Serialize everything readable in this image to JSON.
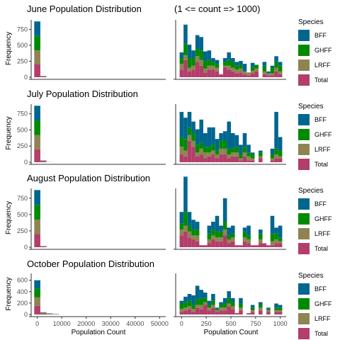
{
  "colors": {
    "BFF": "#00668F",
    "GHFF": "#008A00",
    "LRFF": "#8E8452",
    "Total": "#B33D6B",
    "axis": "#333333",
    "text": "#000000",
    "tick_text": "#4d4d4d"
  },
  "column_title_right": "(1 <= count => 1000)",
  "legend": {
    "title": "Species",
    "entries": [
      "BFF",
      "GHFF",
      "LRFF",
      "Total"
    ]
  },
  "y_axis_label": "Frequency",
  "x_axis_label": "Population Count",
  "panels": [
    {
      "title": "June Population Distribution",
      "left_x_ticks": [],
      "left_y_ticks": [
        0,
        250,
        500,
        750
      ],
      "left_ylim": [
        0,
        900
      ],
      "right_ylim": [
        0,
        60
      ]
    },
    {
      "title": "July Population Distribution",
      "left_x_ticks": [],
      "left_y_ticks": [
        0,
        250,
        500,
        750
      ],
      "left_ylim": [
        0,
        900
      ],
      "right_ylim": [
        0,
        60
      ]
    },
    {
      "title": "August Population Distribution",
      "left_x_ticks": [],
      "left_y_ticks": [
        0,
        250,
        500,
        750
      ],
      "left_ylim": [
        0,
        900
      ],
      "right_ylim": [
        0,
        60
      ]
    },
    {
      "title": "October Population Distribution",
      "left_x_ticks": [
        0,
        10000,
        20000,
        30000,
        40000,
        50000
      ],
      "left_y_ticks": [
        0,
        200,
        400,
        600
      ],
      "left_ylim": [
        0,
        720
      ],
      "right_ylim": [
        0,
        60
      ]
    }
  ],
  "chart_data": [
    {
      "type": "bar",
      "title": "June Population Distribution",
      "xlabel": "",
      "ylabel": "Frequency",
      "xlim": [
        -2500,
        52500
      ],
      "ylim": [
        0,
        900
      ],
      "bin_width": 2500,
      "bin_centers": [
        0,
        2500,
        5000
      ],
      "series": [
        {
          "name": "Total",
          "values": [
            200,
            12,
            0
          ]
        },
        {
          "name": "LRFF",
          "values": [
            222,
            3,
            0
          ]
        },
        {
          "name": "GHFF",
          "values": [
            225,
            2,
            0
          ]
        },
        {
          "name": "BFF",
          "values": [
            228,
            2,
            0
          ]
        }
      ]
    },
    {
      "type": "bar",
      "title": "(1 <= count => 1000)",
      "xlabel": "",
      "ylabel": "",
      "xlim": [
        -60,
        1060
      ],
      "ylim": [
        0,
        60
      ],
      "bin_width": 40,
      "bin_centers": [
        0,
        40,
        80,
        120,
        160,
        200,
        240,
        280,
        320,
        360,
        400,
        440,
        480,
        520,
        560,
        600,
        640,
        680,
        720,
        760,
        800,
        840,
        880,
        920,
        960,
        1000
      ],
      "series": [
        {
          "name": "Total",
          "values": [
            8,
            18,
            6,
            8,
            16,
            12,
            5,
            8,
            8,
            6,
            3,
            10,
            8,
            6,
            4,
            5,
            3,
            2,
            4,
            6,
            0,
            3,
            2,
            2,
            6,
            3
          ]
        },
        {
          "name": "LRFF",
          "values": [
            6,
            5,
            4,
            4,
            6,
            6,
            4,
            4,
            4,
            4,
            0,
            2,
            4,
            4,
            4,
            4,
            3,
            3,
            3,
            3,
            0,
            3,
            2,
            2,
            4,
            3
          ]
        },
        {
          "name": "GHFF",
          "values": [
            6,
            12,
            10,
            8,
            8,
            10,
            8,
            6,
            4,
            4,
            0,
            4,
            6,
            6,
            4,
            4,
            0,
            0,
            4,
            4,
            0,
            6,
            0,
            6,
            6,
            6
          ]
        },
        {
          "name": "BFF",
          "values": [
            6,
            20,
            14,
            8,
            14,
            14,
            10,
            10,
            4,
            4,
            0,
            4,
            8,
            4,
            4,
            4,
            8,
            0,
            4,
            0,
            0,
            4,
            2,
            2,
            6,
            4
          ]
        }
      ]
    },
    {
      "type": "bar",
      "title": "July Population Distribution",
      "xlabel": "",
      "ylabel": "Frequency",
      "xlim": [
        -2500,
        52500
      ],
      "ylim": [
        0,
        900
      ],
      "bin_width": 2500,
      "bin_centers": [
        0,
        2500,
        5000
      ],
      "series": [
        {
          "name": "Total",
          "values": [
            200,
            18,
            2
          ]
        },
        {
          "name": "LRFF",
          "values": [
            222,
            4,
            0
          ]
        },
        {
          "name": "GHFF",
          "values": [
            225,
            3,
            0
          ]
        },
        {
          "name": "BFF",
          "values": [
            228,
            3,
            0
          ]
        }
      ]
    },
    {
      "type": "bar",
      "title": "(1 <= count => 1000)",
      "xlabel": "",
      "ylabel": "",
      "xlim": [
        -60,
        1060
      ],
      "ylim": [
        0,
        60
      ],
      "bin_width": 40,
      "bin_centers": [
        0,
        40,
        80,
        120,
        160,
        200,
        240,
        280,
        320,
        360,
        400,
        440,
        480,
        520,
        560,
        600,
        640,
        680,
        720,
        760,
        800,
        840,
        880,
        920,
        960,
        1000
      ],
      "series": [
        {
          "name": "Total",
          "values": [
            8,
            6,
            22,
            16,
            6,
            8,
            4,
            6,
            8,
            4,
            8,
            8,
            4,
            6,
            6,
            2,
            6,
            2,
            2,
            0,
            4,
            0,
            0,
            2,
            4,
            4
          ]
        },
        {
          "name": "LRFF",
          "values": [
            8,
            6,
            6,
            6,
            4,
            6,
            6,
            4,
            4,
            4,
            6,
            6,
            4,
            4,
            4,
            2,
            4,
            4,
            2,
            0,
            2,
            0,
            0,
            2,
            4,
            2
          ]
        },
        {
          "name": "GHFF",
          "values": [
            10,
            12,
            8,
            8,
            8,
            6,
            6,
            6,
            6,
            4,
            8,
            8,
            6,
            4,
            6,
            4,
            6,
            4,
            4,
            0,
            4,
            0,
            0,
            4,
            6,
            6
          ]
        },
        {
          "name": "BFF",
          "values": [
            26,
            22,
            16,
            12,
            16,
            24,
            14,
            20,
            18,
            12,
            8,
            10,
            28,
            16,
            12,
            10,
            14,
            8,
            2,
            0,
            2,
            0,
            0,
            6,
            38,
            14
          ]
        }
      ]
    },
    {
      "type": "bar",
      "title": "August Population Distribution",
      "xlabel": "",
      "ylabel": "Frequency",
      "xlim": [
        -2500,
        52500
      ],
      "ylim": [
        0,
        900
      ],
      "bin_width": 2500,
      "bin_centers": [
        0,
        2500,
        5000
      ],
      "series": [
        {
          "name": "Total",
          "values": [
            200,
            12,
            0
          ]
        },
        {
          "name": "LRFF",
          "values": [
            222,
            2,
            0
          ]
        },
        {
          "name": "GHFF",
          "values": [
            225,
            2,
            0
          ]
        },
        {
          "name": "BFF",
          "values": [
            228,
            2,
            0
          ]
        }
      ]
    },
    {
      "type": "bar",
      "title": "(1 <= count => 1000)",
      "xlabel": "",
      "ylabel": "",
      "xlim": [
        -60,
        1060
      ],
      "ylim": [
        0,
        60
      ],
      "bin_width": 40,
      "bin_centers": [
        0,
        40,
        80,
        120,
        160,
        200,
        240,
        280,
        320,
        360,
        400,
        440,
        480,
        520,
        560,
        600,
        640,
        680,
        720,
        760,
        800,
        840,
        880,
        920,
        960,
        1000
      ],
      "series": [
        {
          "name": "Total",
          "values": [
            12,
            16,
            10,
            8,
            6,
            2,
            2,
            4,
            8,
            6,
            6,
            12,
            4,
            6,
            2,
            2,
            6,
            4,
            2,
            2,
            4,
            4,
            2,
            2,
            4,
            4
          ]
        },
        {
          "name": "LRFF",
          "values": [
            6,
            6,
            6,
            4,
            6,
            0,
            0,
            4,
            4,
            4,
            4,
            6,
            4,
            4,
            0,
            0,
            4,
            4,
            0,
            0,
            4,
            0,
            0,
            4,
            4,
            2
          ]
        },
        {
          "name": "GHFF",
          "values": [
            6,
            14,
            6,
            6,
            6,
            0,
            0,
            6,
            6,
            6,
            6,
            8,
            4,
            4,
            0,
            0,
            6,
            4,
            0,
            0,
            6,
            0,
            0,
            8,
            6,
            4
          ]
        },
        {
          "name": "BFF",
          "values": [
            12,
            36,
            14,
            10,
            8,
            0,
            0,
            8,
            8,
            16,
            6,
            24,
            8,
            8,
            0,
            0,
            4,
            10,
            0,
            0,
            4,
            0,
            0,
            18,
            6,
            12
          ]
        }
      ]
    },
    {
      "type": "bar",
      "title": "October Population Distribution",
      "xlabel": "Population Count",
      "ylabel": "Frequency",
      "xlim": [
        -2500,
        52500
      ],
      "ylim": [
        0,
        720
      ],
      "bin_width": 2500,
      "bin_centers": [
        0,
        2500,
        5000,
        7500
      ],
      "series": [
        {
          "name": "Total",
          "values": [
            150,
            20,
            8,
            4
          ]
        },
        {
          "name": "LRFF",
          "values": [
            150,
            8,
            4,
            2
          ]
        },
        {
          "name": "GHFF",
          "values": [
            150,
            6,
            4,
            2
          ]
        },
        {
          "name": "BFF",
          "values": [
            150,
            6,
            4,
            2
          ]
        }
      ]
    },
    {
      "type": "bar",
      "title": "(1 <= count => 1000)",
      "xlabel": "Population Count",
      "ylabel": "",
      "xlim": [
        -60,
        1060
      ],
      "ylim": [
        0,
        60
      ],
      "x_ticks": [
        0,
        250,
        500,
        750,
        1000
      ],
      "bin_width": 40,
      "bin_centers": [
        0,
        40,
        80,
        120,
        160,
        200,
        240,
        280,
        320,
        360,
        400,
        440,
        480,
        520,
        560,
        600,
        640,
        680,
        720,
        760,
        800,
        840,
        880,
        920,
        960,
        1000
      ],
      "series": [
        {
          "name": "Total",
          "values": [
            4,
            6,
            8,
            4,
            10,
            8,
            14,
            6,
            10,
            4,
            6,
            6,
            12,
            8,
            2,
            6,
            0,
            2,
            4,
            0,
            6,
            0,
            4,
            0,
            4,
            4
          ]
        },
        {
          "name": "LRFF",
          "values": [
            4,
            4,
            4,
            4,
            4,
            6,
            4,
            4,
            4,
            2,
            4,
            4,
            4,
            4,
            0,
            4,
            0,
            0,
            2,
            0,
            4,
            0,
            2,
            0,
            2,
            2
          ]
        },
        {
          "name": "GHFF",
          "values": [
            8,
            8,
            8,
            6,
            8,
            10,
            6,
            4,
            6,
            2,
            4,
            6,
            8,
            6,
            0,
            6,
            0,
            0,
            4,
            0,
            4,
            0,
            2,
            0,
            4,
            4
          ]
        },
        {
          "name": "BFF",
          "values": [
            4,
            8,
            10,
            14,
            20,
            12,
            8,
            6,
            10,
            2,
            4,
            8,
            10,
            6,
            0,
            8,
            0,
            0,
            4,
            0,
            4,
            0,
            2,
            0,
            6,
            4
          ]
        }
      ]
    }
  ]
}
